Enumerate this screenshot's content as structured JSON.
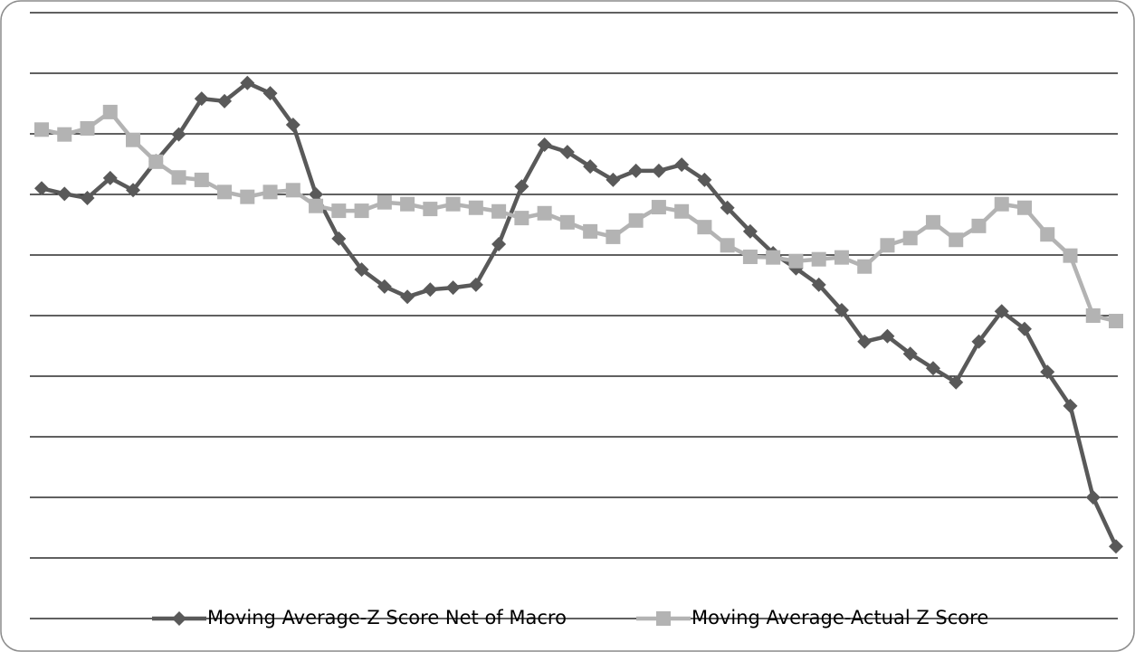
{
  "chart_data": {
    "type": "line",
    "categories": [
      null,
      null,
      null,
      null,
      null,
      null,
      null,
      null,
      null,
      null,
      null,
      null,
      null,
      null,
      null,
      null,
      null,
      null,
      null,
      null,
      null,
      null,
      null,
      null,
      null,
      null,
      null,
      null,
      null,
      null,
      null,
      null,
      null,
      null,
      null,
      null,
      null,
      null,
      null,
      null,
      null,
      null,
      null,
      null,
      null,
      null,
      null,
      null
    ],
    "series": [
      {
        "name": "Moving Average-Z Score Net of Macro",
        "color": "#595959",
        "marker": "diamond",
        "values": [
          7.1,
          7.01,
          6.94,
          7.27,
          7.07,
          7.55,
          7.99,
          8.58,
          8.54,
          8.84,
          8.67,
          8.15,
          7.0,
          6.27,
          5.76,
          5.48,
          5.31,
          5.43,
          5.46,
          5.51,
          6.18,
          7.13,
          7.82,
          7.7,
          7.46,
          7.24,
          7.39,
          7.39,
          7.49,
          7.24,
          6.78,
          6.39,
          6.03,
          5.78,
          5.51,
          5.09,
          4.57,
          4.66,
          4.37,
          4.13,
          3.9,
          4.57,
          5.07,
          4.78,
          4.07,
          3.51,
          2.0,
          1.19
        ]
      },
      {
        "name": "Moving Average-Actual Z Score",
        "color": "#b3b3b3",
        "marker": "square",
        "values": [
          8.07,
          7.99,
          8.09,
          8.36,
          7.9,
          7.54,
          7.28,
          7.24,
          7.04,
          6.96,
          7.04,
          7.07,
          6.81,
          6.73,
          6.73,
          6.87,
          6.84,
          6.76,
          6.84,
          6.78,
          6.72,
          6.61,
          6.69,
          6.54,
          6.39,
          6.3,
          6.57,
          6.79,
          6.72,
          6.46,
          6.16,
          5.97,
          5.96,
          5.9,
          5.93,
          5.96,
          5.81,
          6.16,
          6.28,
          6.54,
          6.25,
          6.48,
          6.84,
          6.78,
          6.34,
          5.99,
          5.0,
          4.91
        ]
      }
    ],
    "ylim": [
      0,
      10
    ],
    "yticks": [
      0,
      1,
      2,
      3,
      4,
      5,
      6,
      7,
      8,
      9,
      10
    ],
    "grid": true,
    "legend": "bottom"
  }
}
